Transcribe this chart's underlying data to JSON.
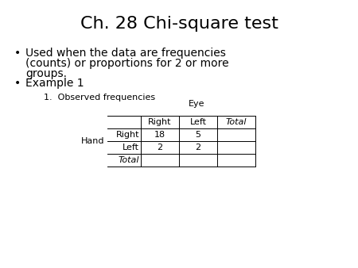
{
  "title": "Ch. 28 Chi-square test",
  "bullet1_line1": "Used when the data are frequencies",
  "bullet1_line2": "(counts) or proportions for 2 or more",
  "bullet1_line3": "groups.",
  "bullet2": "Example 1",
  "sub_label": "1.  Observed frequencies",
  "eye_label": "Eye",
  "hand_label": "Hand",
  "col_headers": [
    "Right",
    "Left",
    "Total"
  ],
  "row_headers": [
    "Right",
    "Left",
    "Total"
  ],
  "table_data": [
    [
      "18",
      "5",
      ""
    ],
    [
      "2",
      "2",
      ""
    ],
    [
      "",
      "",
      ""
    ]
  ],
  "background_color": "#ffffff",
  "text_color": "#000000",
  "title_fontsize": 16,
  "body_fontsize": 10,
  "small_fontsize": 8
}
